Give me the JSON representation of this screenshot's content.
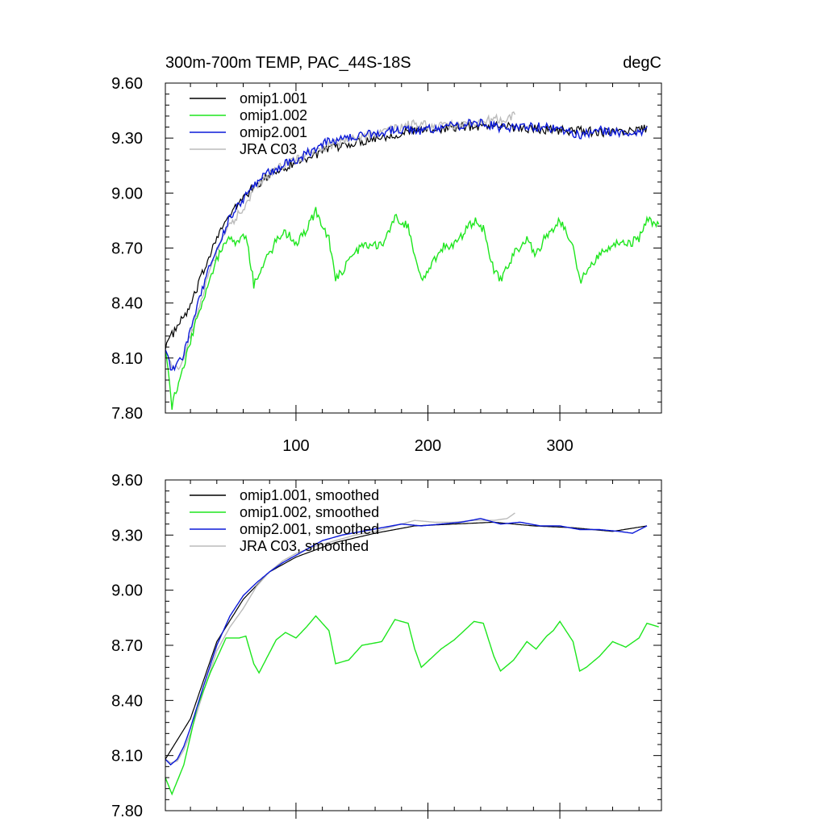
{
  "figure": {
    "left_title": "300m-700m TEMP, PAC_44S-18S",
    "right_title": "degC"
  },
  "chart_data": [
    {
      "type": "line",
      "title": "300m-700m TEMP, PAC_44S-18S",
      "units": "degC",
      "xlim": [
        1,
        377
      ],
      "ylim": [
        7.8,
        9.6
      ],
      "x_ticks": [
        100,
        200,
        300
      ],
      "x_tick_labels": [
        "100",
        "200",
        "300"
      ],
      "y_ticks": [
        7.8,
        8.1,
        8.4,
        8.7,
        9.0,
        9.3,
        9.6
      ],
      "y_tick_labels": [
        "7.80",
        "8.10",
        "8.40",
        "8.70",
        "9.00",
        "9.30",
        "9.60"
      ],
      "grid": false,
      "legend_position": "top-left",
      "series": [
        {
          "name": "omip1.001",
          "color": "#000000",
          "x": [
            1,
            20,
            40,
            60,
            80,
            100,
            130,
            160,
            190,
            220,
            250,
            280,
            310,
            340,
            366
          ],
          "values": [
            8.17,
            8.38,
            8.77,
            8.98,
            9.1,
            9.17,
            9.25,
            9.3,
            9.34,
            9.36,
            9.37,
            9.35,
            9.34,
            9.33,
            9.35
          ]
        },
        {
          "name": "omip1.002",
          "color": "#1ee61e",
          "x": [
            1,
            6,
            15,
            25,
            35,
            47,
            57,
            62,
            68,
            72,
            85,
            92,
            100,
            108,
            115,
            125,
            130,
            140,
            150,
            165,
            175,
            185,
            190,
            195,
            210,
            220,
            235,
            242,
            250,
            255,
            265,
            275,
            282,
            290,
            295,
            300,
            310,
            315,
            320,
            330,
            340,
            350,
            360,
            366,
            375
          ],
          "values": [
            8.17,
            7.84,
            8.05,
            8.32,
            8.55,
            8.75,
            8.73,
            8.78,
            8.5,
            8.56,
            8.74,
            8.79,
            8.72,
            8.8,
            8.9,
            8.75,
            8.53,
            8.62,
            8.72,
            8.72,
            8.87,
            8.82,
            8.65,
            8.52,
            8.7,
            8.72,
            8.85,
            8.8,
            8.58,
            8.52,
            8.67,
            8.75,
            8.66,
            8.78,
            8.8,
            8.86,
            8.7,
            8.52,
            8.58,
            8.66,
            8.72,
            8.72,
            8.75,
            8.85,
            8.82
          ]
        },
        {
          "name": "omip2.001",
          "color": "#0c1ad8",
          "x": [
            1,
            5,
            10,
            15,
            20,
            30,
            40,
            50,
            60,
            70,
            80,
            90,
            100,
            110,
            120,
            135,
            150,
            165,
            180,
            195,
            210,
            225,
            240,
            255,
            270,
            285,
            300,
            315,
            330,
            345,
            355,
            366
          ],
          "values": [
            8.17,
            8.05,
            8.06,
            8.12,
            8.25,
            8.5,
            8.7,
            8.87,
            8.97,
            9.05,
            9.12,
            9.15,
            9.18,
            9.22,
            9.27,
            9.3,
            9.32,
            9.33,
            9.35,
            9.34,
            9.36,
            9.37,
            9.39,
            9.35,
            9.37,
            9.36,
            9.35,
            9.32,
            9.34,
            9.33,
            9.32,
            9.35
          ]
        },
        {
          "name": "JRA C03",
          "color": "#bbbbbb",
          "x": [
            1,
            5,
            10,
            15,
            20,
            30,
            40,
            50,
            60,
            70,
            80,
            90,
            100,
            115,
            130,
            145,
            160,
            175,
            190,
            205,
            220,
            235,
            250,
            260,
            266
          ],
          "values": [
            8.17,
            8.06,
            8.05,
            8.1,
            8.22,
            8.47,
            8.68,
            8.82,
            8.92,
            9.03,
            9.1,
            9.15,
            9.18,
            9.24,
            9.27,
            9.3,
            9.32,
            9.35,
            9.38,
            9.36,
            9.37,
            9.38,
            9.4,
            9.41,
            9.43
          ]
        }
      ]
    },
    {
      "type": "line",
      "xlim": [
        1,
        377
      ],
      "ylim": [
        7.8,
        9.6
      ],
      "x_ticks": [
        100,
        200,
        300
      ],
      "y_ticks": [
        7.8,
        8.1,
        8.4,
        8.7,
        9.0,
        9.3,
        9.6
      ],
      "y_tick_labels": [
        "7.80",
        "8.10",
        "8.40",
        "8.70",
        "9.00",
        "9.30",
        "9.60"
      ],
      "grid": false,
      "legend_position": "top-left",
      "series": [
        {
          "name": "omip1.001, smoothed",
          "color": "#000000",
          "x": [
            1,
            20,
            40,
            60,
            80,
            100,
            130,
            160,
            190,
            220,
            250,
            280,
            310,
            340,
            366
          ],
          "values": [
            8.08,
            8.3,
            8.72,
            8.95,
            9.1,
            9.18,
            9.26,
            9.31,
            9.35,
            9.36,
            9.37,
            9.35,
            9.34,
            9.32,
            9.35
          ]
        },
        {
          "name": "omip1.002, smoothed",
          "color": "#1ee61e",
          "x": [
            1,
            6,
            15,
            25,
            35,
            47,
            57,
            62,
            68,
            72,
            85,
            92,
            100,
            108,
            115,
            125,
            130,
            140,
            150,
            165,
            175,
            185,
            190,
            195,
            210,
            220,
            235,
            242,
            250,
            255,
            265,
            275,
            282,
            290,
            295,
            300,
            310,
            315,
            320,
            330,
            340,
            350,
            360,
            366,
            375
          ],
          "values": [
            7.98,
            7.89,
            8.05,
            8.36,
            8.55,
            8.74,
            8.74,
            8.75,
            8.6,
            8.55,
            8.73,
            8.77,
            8.74,
            8.8,
            8.86,
            8.78,
            8.6,
            8.62,
            8.7,
            8.72,
            8.84,
            8.82,
            8.68,
            8.58,
            8.68,
            8.73,
            8.83,
            8.82,
            8.64,
            8.56,
            8.62,
            8.72,
            8.68,
            8.75,
            8.78,
            8.83,
            8.72,
            8.56,
            8.58,
            8.64,
            8.72,
            8.69,
            8.74,
            8.82,
            8.8
          ]
        },
        {
          "name": "omip2.001, smoothed",
          "color": "#0c1ad8",
          "x": [
            1,
            5,
            10,
            15,
            20,
            30,
            40,
            50,
            60,
            70,
            80,
            90,
            100,
            110,
            120,
            135,
            150,
            165,
            180,
            195,
            210,
            225,
            240,
            255,
            270,
            285,
            300,
            315,
            330,
            345,
            355,
            366
          ],
          "values": [
            8.08,
            8.05,
            8.08,
            8.15,
            8.25,
            8.48,
            8.7,
            8.86,
            8.97,
            9.04,
            9.1,
            9.15,
            9.19,
            9.23,
            9.27,
            9.3,
            9.32,
            9.34,
            9.36,
            9.35,
            9.36,
            9.37,
            9.39,
            9.36,
            9.37,
            9.35,
            9.35,
            9.33,
            9.33,
            9.32,
            9.31,
            9.35
          ]
        },
        {
          "name": "JRA C03, smoothed",
          "color": "#bbbbbb",
          "x": [
            1,
            5,
            10,
            15,
            20,
            30,
            40,
            50,
            60,
            70,
            80,
            90,
            100,
            115,
            130,
            145,
            160,
            175,
            190,
            205,
            220,
            235,
            250,
            260,
            266
          ],
          "values": [
            8.08,
            8.06,
            8.07,
            8.13,
            8.22,
            8.45,
            8.67,
            8.8,
            8.9,
            9.02,
            9.1,
            9.16,
            9.2,
            9.24,
            9.27,
            9.3,
            9.32,
            9.35,
            9.38,
            9.37,
            9.37,
            9.38,
            9.38,
            9.39,
            9.42
          ]
        }
      ]
    }
  ]
}
